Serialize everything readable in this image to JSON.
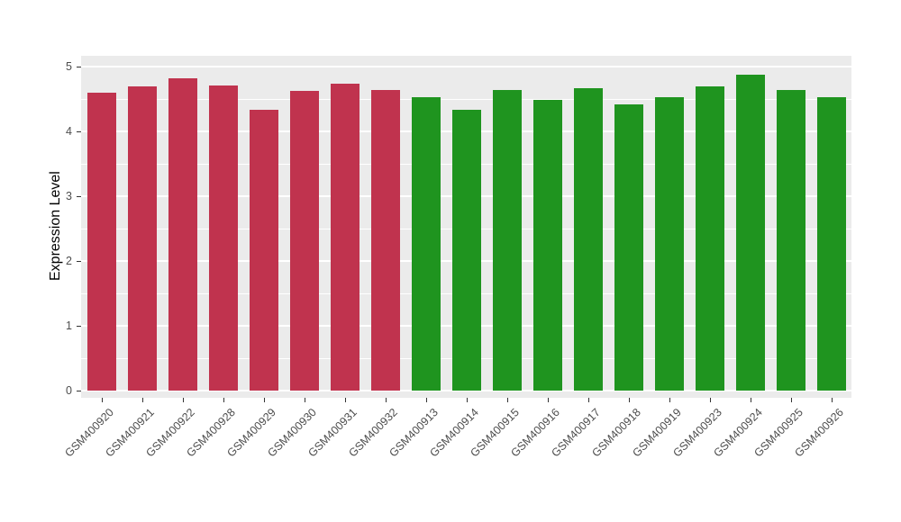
{
  "chart_data": {
    "type": "bar",
    "title": "",
    "xlabel": "",
    "ylabel": "Expression Level",
    "ylim": [
      0,
      5
    ],
    "yticks": [
      0,
      1,
      2,
      3,
      4,
      5
    ],
    "grid": "on",
    "legend": "none",
    "panel_bg": "#EBEBEB",
    "categories": [
      "GSM400920",
      "GSM400921",
      "GSM400922",
      "GSM400928",
      "GSM400929",
      "GSM400930",
      "GSM400931",
      "GSM400932",
      "GSM400913",
      "GSM400914",
      "GSM400915",
      "GSM400916",
      "GSM400917",
      "GSM400918",
      "GSM400919",
      "GSM400923",
      "GSM400924",
      "GSM400925",
      "GSM400926"
    ],
    "values": [
      4.6,
      4.7,
      4.82,
      4.71,
      4.33,
      4.63,
      4.73,
      4.64,
      4.53,
      4.33,
      4.64,
      4.48,
      4.66,
      4.42,
      4.53,
      4.7,
      4.87,
      4.64,
      4.53
    ],
    "groups": [
      "red",
      "red",
      "red",
      "red",
      "red",
      "red",
      "red",
      "red",
      "green",
      "green",
      "green",
      "green",
      "green",
      "green",
      "green",
      "green",
      "green",
      "green",
      "green"
    ],
    "colors": {
      "red": "#C0334E",
      "green": "#1F941F"
    }
  }
}
